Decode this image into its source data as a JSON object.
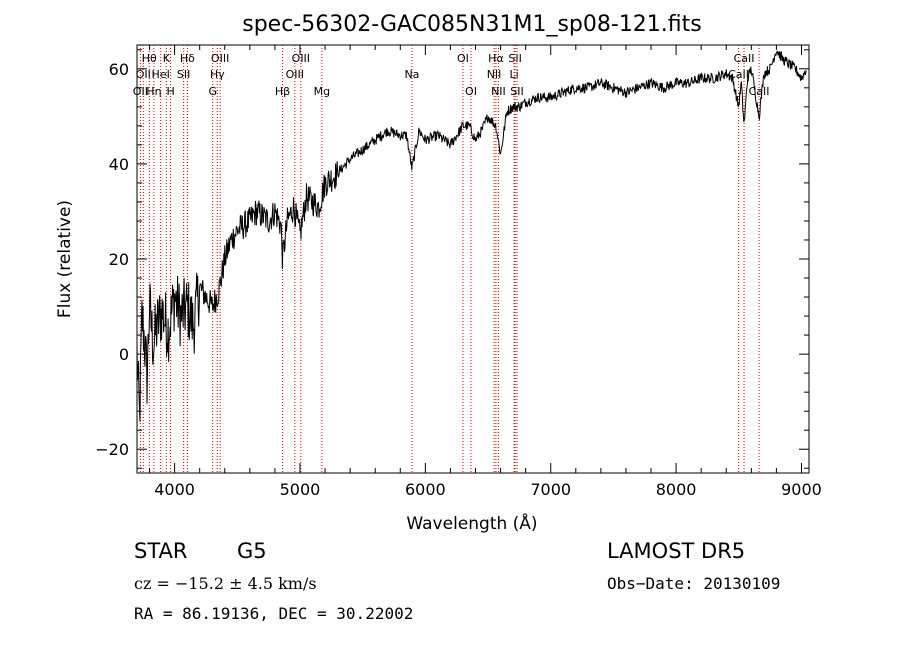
{
  "chart_data": {
    "type": "line",
    "title": "spec-56302-GAC085N31M1_sp08-121.fits",
    "xlabel": "Wavelength (Å)",
    "ylabel": "Flux (relative)",
    "xlim": [
      3700,
      9060
    ],
    "ylim": [
      -25,
      65
    ],
    "xticks": [
      4000,
      5000,
      6000,
      7000,
      8000,
      9000
    ],
    "yticks": [
      -20,
      0,
      20,
      40,
      60
    ],
    "grid": false,
    "line_color": "#000000",
    "marker_color": "#cc0000",
    "series": [
      {
        "x": [
          3700,
          3720,
          3740,
          3760,
          3780,
          3800,
          3830,
          3860,
          3900,
          3950,
          4000,
          4050,
          4100,
          4150,
          4200,
          4250,
          4300,
          4350,
          4400,
          4450,
          4500,
          4550,
          4600,
          4650,
          4700,
          4750,
          4800,
          4850,
          4861,
          4900,
          4950,
          5000,
          5050,
          5100,
          5150,
          5200,
          5300,
          5400,
          5500,
          5600,
          5700,
          5800,
          5850,
          5893,
          5950,
          6000,
          6100,
          6200,
          6300,
          6350,
          6400,
          6450,
          6500,
          6563,
          6600,
          6650,
          6700,
          6750,
          6800,
          6900,
          7000,
          7100,
          7200,
          7300,
          7400,
          7500,
          7600,
          7700,
          7800,
          7900,
          8000,
          8100,
          8200,
          8300,
          8400,
          8450,
          8498,
          8520,
          8542,
          8570,
          8600,
          8662,
          8700,
          8750,
          8800,
          8850,
          8900,
          8950,
          9000,
          9040
        ],
        "y": [
          0,
          -14,
          8,
          3,
          -5,
          10,
          2,
          6,
          9,
          5,
          12,
          8,
          10,
          6,
          14,
          12,
          10,
          13,
          20,
          24,
          26,
          27,
          28,
          30,
          29,
          28,
          30,
          27,
          20,
          28,
          31,
          25,
          33,
          32,
          31,
          36,
          38,
          41,
          43,
          45,
          47,
          46,
          46,
          39,
          47,
          45,
          46,
          44,
          48,
          48,
          45,
          47,
          50,
          48,
          42,
          51,
          52,
          52,
          53,
          54,
          54,
          55,
          56,
          56,
          57,
          56,
          55,
          56,
          57,
          56,
          57,
          57,
          58,
          58,
          59,
          58,
          52,
          57,
          48,
          58,
          60,
          50,
          59,
          60,
          64,
          62,
          61,
          60,
          58,
          60
        ]
      }
    ],
    "lines": [
      {
        "wavelength": 3727,
        "label": "OII",
        "row": 2
      },
      {
        "wavelength": 3750,
        "label": "OII",
        "row": 1
      },
      {
        "wavelength": 3798,
        "label": "Hθ",
        "row": 0
      },
      {
        "wavelength": 3835,
        "label": "Hη",
        "row": 2
      },
      {
        "wavelength": 3889,
        "label": "HeI",
        "row": 1
      },
      {
        "wavelength": 3934,
        "label": "K",
        "row": 0
      },
      {
        "wavelength": 3968,
        "label": "H",
        "row": 2
      },
      {
        "wavelength": 4072,
        "label": "SII",
        "row": 1
      },
      {
        "wavelength": 4102,
        "label": "Hδ",
        "row": 0
      },
      {
        "wavelength": 4304,
        "label": "G",
        "row": 2
      },
      {
        "wavelength": 4340,
        "label": "Hγ",
        "row": 1
      },
      {
        "wavelength": 4363,
        "label": "OIII",
        "row": 0
      },
      {
        "wavelength": 4861,
        "label": "Hβ",
        "row": 2
      },
      {
        "wavelength": 4959,
        "label": "OIII",
        "row": 1
      },
      {
        "wavelength": 5007,
        "label": "OIII",
        "row": 0
      },
      {
        "wavelength": 5175,
        "label": "Mg",
        "row": 2
      },
      {
        "wavelength": 5893,
        "label": "Na",
        "row": 1
      },
      {
        "wavelength": 6300,
        "label": "OI",
        "row": 0
      },
      {
        "wavelength": 6364,
        "label": "OI",
        "row": 2
      },
      {
        "wavelength": 6548,
        "label": "NII",
        "row": 1
      },
      {
        "wavelength": 6563,
        "label": "Hα",
        "row": 0
      },
      {
        "wavelength": 6583,
        "label": "NII",
        "row": 2
      },
      {
        "wavelength": 6708,
        "label": "Li",
        "row": 1
      },
      {
        "wavelength": 6716,
        "label": "SII",
        "row": 0
      },
      {
        "wavelength": 6731,
        "label": "SII",
        "row": 2
      },
      {
        "wavelength": 8498,
        "label": "CaII",
        "row": 1
      },
      {
        "wavelength": 8542,
        "label": "CaII",
        "row": 0
      },
      {
        "wavelength": 8662,
        "label": "CaII",
        "row": 2
      }
    ]
  },
  "info": {
    "object_class": "STAR",
    "subclass": "G5",
    "survey": "LAMOST DR5",
    "velocity": "cz = −15.2 ± 4.5 km/s",
    "obs_date": "Obs−Date: 20130109",
    "coords": "RA =  86.19136, DEC =  30.22002"
  }
}
